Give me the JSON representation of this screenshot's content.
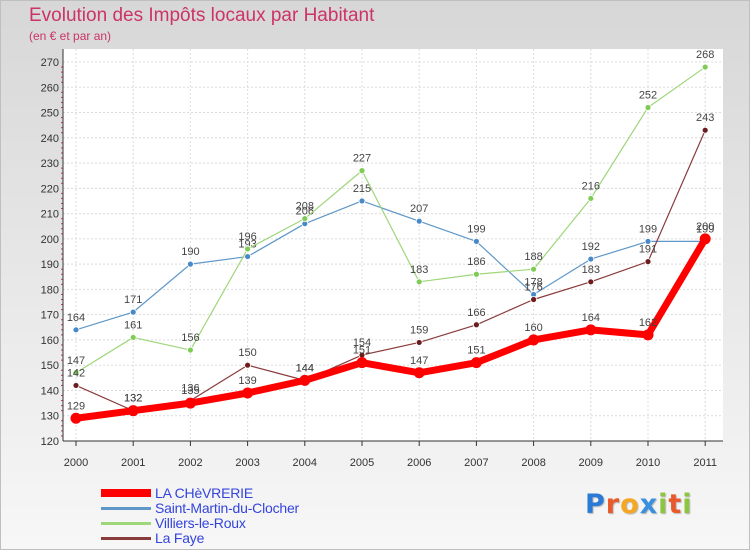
{
  "title": "Evolution des Impôts locaux par Habitant",
  "subtitle": "(en € et par an)",
  "logo": {
    "text": "Proxiti",
    "letters": [
      "P",
      "r",
      "o",
      "x",
      "i",
      "t",
      "i"
    ],
    "colors": [
      "#2b7bd6",
      "#e85a2b",
      "#f5a623",
      "#3a8fe0",
      "#8cc63f",
      "#e85a2b",
      "#8cc63f"
    ]
  },
  "chart_data": {
    "type": "line",
    "x": [
      "2000",
      "2001",
      "2002",
      "2003",
      "2004",
      "2005",
      "2006",
      "2007",
      "2008",
      "2009",
      "2010",
      "2011"
    ],
    "ylim": [
      120,
      270
    ],
    "yticks": [
      120,
      130,
      140,
      150,
      160,
      170,
      180,
      190,
      200,
      210,
      220,
      230,
      240,
      250,
      260,
      270
    ],
    "grid": true,
    "legend_position": "bottom-left",
    "series": [
      {
        "name": "Saint-Martin-du-Clocher",
        "color": "#5f97c8",
        "marker": "#4a89c8",
        "width": 1.2,
        "values": [
          164,
          171,
          190,
          193,
          206,
          215,
          207,
          199,
          178,
          192,
          199,
          199
        ]
      },
      {
        "name": "Villiers-le-Roux",
        "color": "#9ed67a",
        "marker": "#7fcc55",
        "width": 1.2,
        "values": [
          147,
          161,
          156,
          196,
          208,
          227,
          183,
          186,
          188,
          216,
          252,
          268
        ]
      },
      {
        "name": "La Faye",
        "color": "#8a3b3b",
        "marker": "#6b1d1d",
        "width": 1.2,
        "values": [
          142,
          132,
          136,
          150,
          144,
          154,
          159,
          166,
          176,
          183,
          191,
          243
        ]
      },
      {
        "name": "LA CHèVRERIE",
        "color": "#ff0000",
        "marker": "#ff0000",
        "width": 7,
        "values": [
          129,
          132,
          135,
          139,
          144,
          151,
          147,
          151,
          160,
          164,
          162,
          200
        ]
      }
    ]
  }
}
